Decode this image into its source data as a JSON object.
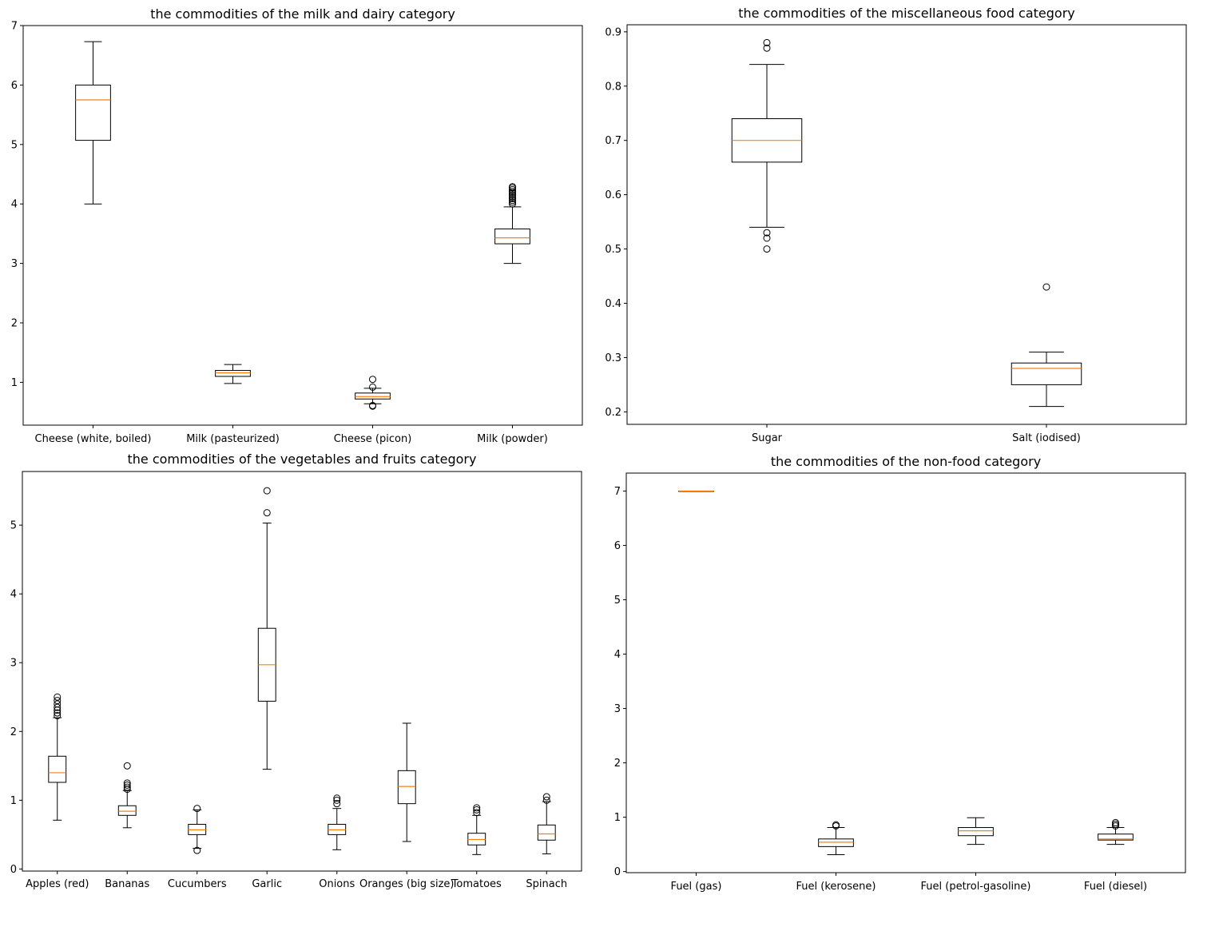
{
  "chart_data": [
    {
      "type": "box",
      "title": "the  commodities of the milk and dairy category",
      "categories": [
        "Cheese (white, boiled)",
        "Milk (pasteurized)",
        "Cheese (picon)",
        "Milk (powder)"
      ],
      "yticks": [
        1,
        2,
        3,
        4,
        5,
        6,
        7
      ],
      "ylim": [
        0.28,
        7.0
      ],
      "boxes": [
        {
          "whislo": 4.0,
          "q1": 5.07,
          "med": 5.75,
          "q3": 6.0,
          "whishi": 6.73,
          "fliers": []
        },
        {
          "whislo": 0.98,
          "q1": 1.1,
          "med": 1.16,
          "q3": 1.2,
          "whishi": 1.3,
          "fliers": []
        },
        {
          "whislo": 0.64,
          "q1": 0.72,
          "med": 0.76,
          "q3": 0.82,
          "whishi": 0.9,
          "fliers": [
            0.6,
            0.61,
            0.92,
            1.05
          ]
        },
        {
          "whislo": 3.0,
          "q1": 3.33,
          "med": 3.43,
          "q3": 3.58,
          "whishi": 3.95,
          "fliers": [
            4.0,
            4.03,
            4.06,
            4.09,
            4.12,
            4.15,
            4.18,
            4.21,
            4.24,
            4.27,
            4.29
          ]
        }
      ]
    },
    {
      "type": "box",
      "title": "the  commodities of the miscellaneous food category",
      "categories": [
        "Sugar",
        "Salt (iodised)"
      ],
      "yticks": [
        0.2,
        0.3,
        0.4,
        0.5,
        0.6,
        0.7,
        0.8,
        0.9
      ],
      "ylim": [
        0.177,
        0.913
      ],
      "boxes": [
        {
          "whislo": 0.54,
          "q1": 0.66,
          "med": 0.7,
          "q3": 0.74,
          "whishi": 0.84,
          "fliers": [
            0.5,
            0.52,
            0.53,
            0.87,
            0.88
          ]
        },
        {
          "whislo": 0.21,
          "q1": 0.25,
          "med": 0.28,
          "q3": 0.29,
          "whishi": 0.31,
          "fliers": [
            0.43
          ]
        }
      ]
    },
    {
      "type": "box",
      "title": "the  commodities of the vegetables and fruits category",
      "categories": [
        "Apples (red)",
        "Bananas",
        "Cucumbers",
        "Garlic",
        "Onions",
        "Oranges (big size)",
        "Tomatoes",
        "Spinach"
      ],
      "yticks": [
        0,
        1,
        2,
        3,
        4,
        5
      ],
      "ylim": [
        -0.03,
        5.78
      ],
      "boxes": [
        {
          "whislo": 0.71,
          "q1": 1.26,
          "med": 1.4,
          "q3": 1.64,
          "whishi": 2.2,
          "fliers": [
            2.23,
            2.27,
            2.31,
            2.35,
            2.4,
            2.45,
            2.5
          ]
        },
        {
          "whislo": 0.6,
          "q1": 0.78,
          "med": 0.84,
          "q3": 0.92,
          "whishi": 1.14,
          "fliers": [
            1.16,
            1.19,
            1.22,
            1.25,
            1.5
          ]
        },
        {
          "whislo": 0.3,
          "q1": 0.5,
          "med": 0.57,
          "q3": 0.65,
          "whishi": 0.86,
          "fliers": [
            0.27,
            0.88
          ]
        },
        {
          "whislo": 1.45,
          "q1": 2.44,
          "med": 2.97,
          "q3": 3.5,
          "whishi": 5.03,
          "fliers": [
            5.18,
            5.5
          ]
        },
        {
          "whislo": 0.28,
          "q1": 0.5,
          "med": 0.57,
          "q3": 0.65,
          "whishi": 0.88,
          "fliers": [
            0.95,
            1.0,
            1.03
          ]
        },
        {
          "whislo": 0.4,
          "q1": 0.95,
          "med": 1.2,
          "q3": 1.43,
          "whishi": 2.12,
          "fliers": []
        },
        {
          "whislo": 0.21,
          "q1": 0.35,
          "med": 0.43,
          "q3": 0.52,
          "whishi": 0.78,
          "fliers": [
            0.82,
            0.86,
            0.89
          ]
        },
        {
          "whislo": 0.22,
          "q1": 0.42,
          "med": 0.51,
          "q3": 0.64,
          "whishi": 0.98,
          "fliers": [
            1.0,
            1.05
          ]
        }
      ]
    },
    {
      "type": "box",
      "title": "the  commodities of the non-food category",
      "categories": [
        "Fuel (gas)",
        "Fuel (kerosene)",
        "Fuel (petrol-gasoline)",
        "Fuel (diesel)"
      ],
      "yticks": [
        0,
        1,
        2,
        3,
        4,
        5,
        6,
        7
      ],
      "ylim": [
        -0.02,
        7.33
      ],
      "boxes": [
        {
          "whislo": 7.0,
          "q1": 7.0,
          "med": 7.0,
          "q3": 7.0,
          "whishi": 7.0,
          "fliers": []
        },
        {
          "whislo": 0.31,
          "q1": 0.46,
          "med": 0.54,
          "q3": 0.6,
          "whishi": 0.81,
          "fliers": [
            0.84,
            0.86
          ]
        },
        {
          "whislo": 0.5,
          "q1": 0.66,
          "med": 0.75,
          "q3": 0.81,
          "whishi": 0.99,
          "fliers": []
        },
        {
          "whislo": 0.5,
          "q1": 0.58,
          "med": 0.6,
          "q3": 0.69,
          "whishi": 0.81,
          "fliers": [
            0.84,
            0.87,
            0.9
          ]
        }
      ]
    }
  ],
  "colors": {
    "box": "#000000",
    "median": "#ff7f0e",
    "axes": "#000000",
    "background": "#ffffff"
  }
}
